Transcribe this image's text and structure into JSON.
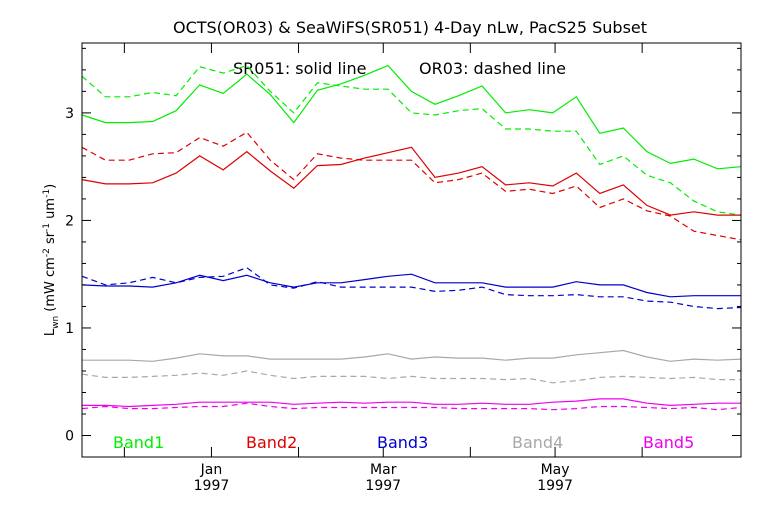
{
  "chart_data": {
    "type": "line",
    "title": "OCTS(OR03) & SeaWiFS(SR051) 4-Day nLw, PacS25 Subset",
    "annotation": {
      "solid": "SR051: solid line",
      "dashed": "OR03: dashed line"
    },
    "ylabel": {
      "main": "L",
      "sub": "wn",
      "units_open": " (mW cm",
      "sup1": "-2",
      "sr": " sr",
      "sup2": "-1",
      "um": " um",
      "sup3": "-1",
      "units_close": ")"
    },
    "xlim": [
      0,
      28
    ],
    "ylim": [
      -0.2,
      3.65
    ],
    "y_ticks": [
      0,
      1,
      2,
      3
    ],
    "y_tick_labels": [
      "0",
      "1",
      "2",
      "3"
    ],
    "x_major_ticks": [
      {
        "x": 5.5,
        "month": "Jan",
        "year": "1997"
      },
      {
        "x": 12.8,
        "month": "Mar",
        "year": "1997"
      },
      {
        "x": 20.1,
        "month": "May",
        "year": "1997"
      }
    ],
    "x_minor_ticks": [
      1.8,
      9.2,
      16.5,
      23.8
    ],
    "grid": false,
    "legend_position": "bottom",
    "series": [
      {
        "name": "Band1",
        "color": "#00ee00",
        "dash": false,
        "x": [
          0,
          1,
          2,
          3,
          4,
          5,
          6,
          7,
          8,
          9,
          10,
          11,
          12,
          13,
          14,
          15,
          16,
          17,
          18,
          19,
          20,
          21,
          22,
          23,
          24,
          25,
          26,
          27,
          28
        ],
        "values": [
          2.98,
          2.91,
          2.91,
          2.92,
          3.02,
          3.26,
          3.18,
          3.36,
          3.17,
          2.91,
          3.21,
          3.27,
          3.35,
          3.44,
          3.2,
          3.08,
          3.16,
          3.25,
          3.0,
          3.03,
          3.0,
          3.15,
          2.81,
          2.86,
          2.64,
          2.53,
          2.57,
          2.48,
          2.5
        ]
      },
      {
        "name": "Band1",
        "color": "#00ee00",
        "dash": true,
        "x": [
          0,
          1,
          2,
          3,
          4,
          5,
          6,
          7,
          8,
          9,
          10,
          11,
          12,
          13,
          14,
          15,
          16,
          17,
          18,
          19,
          20,
          21,
          22,
          23,
          24,
          25,
          26,
          27,
          28
        ],
        "values": [
          3.34,
          3.15,
          3.15,
          3.19,
          3.16,
          3.43,
          3.37,
          3.44,
          3.2,
          3.0,
          3.28,
          3.25,
          3.22,
          3.22,
          3.0,
          2.98,
          3.02,
          3.04,
          2.85,
          2.85,
          2.83,
          2.83,
          2.52,
          2.6,
          2.42,
          2.35,
          2.18,
          2.08,
          2.05
        ]
      },
      {
        "name": "Band2",
        "color": "#dd0000",
        "dash": false,
        "x": [
          0,
          1,
          2,
          3,
          4,
          5,
          6,
          7,
          8,
          9,
          10,
          11,
          12,
          13,
          14,
          15,
          16,
          17,
          18,
          19,
          20,
          21,
          22,
          23,
          24,
          25,
          26,
          27,
          28
        ],
        "values": [
          2.38,
          2.34,
          2.34,
          2.35,
          2.44,
          2.6,
          2.47,
          2.64,
          2.46,
          2.3,
          2.51,
          2.52,
          2.58,
          2.63,
          2.68,
          2.4,
          2.44,
          2.5,
          2.33,
          2.35,
          2.32,
          2.44,
          2.25,
          2.33,
          2.14,
          2.05,
          2.08,
          2.05,
          2.05
        ]
      },
      {
        "name": "Band2",
        "color": "#dd0000",
        "dash": true,
        "x": [
          0,
          1,
          2,
          3,
          4,
          5,
          6,
          7,
          8,
          9,
          10,
          11,
          12,
          13,
          14,
          15,
          16,
          17,
          18,
          19,
          20,
          21,
          22,
          23,
          24,
          25,
          26,
          27,
          28
        ],
        "values": [
          2.68,
          2.56,
          2.56,
          2.62,
          2.63,
          2.77,
          2.69,
          2.82,
          2.56,
          2.38,
          2.62,
          2.58,
          2.56,
          2.56,
          2.56,
          2.35,
          2.38,
          2.44,
          2.27,
          2.29,
          2.25,
          2.32,
          2.12,
          2.2,
          2.09,
          2.04,
          1.9,
          1.86,
          1.82
        ]
      },
      {
        "name": "Band3",
        "color": "#0000cc",
        "dash": false,
        "x": [
          0,
          1,
          2,
          3,
          4,
          5,
          6,
          7,
          8,
          9,
          10,
          11,
          12,
          13,
          14,
          15,
          16,
          17,
          18,
          19,
          20,
          21,
          22,
          23,
          24,
          25,
          26,
          27,
          28
        ],
        "values": [
          1.4,
          1.39,
          1.39,
          1.38,
          1.42,
          1.49,
          1.44,
          1.49,
          1.42,
          1.38,
          1.42,
          1.42,
          1.45,
          1.48,
          1.5,
          1.42,
          1.42,
          1.42,
          1.38,
          1.38,
          1.38,
          1.43,
          1.4,
          1.4,
          1.33,
          1.29,
          1.3,
          1.3,
          1.3
        ]
      },
      {
        "name": "Band3",
        "color": "#0000cc",
        "dash": true,
        "x": [
          0,
          1,
          2,
          3,
          4,
          5,
          6,
          7,
          8,
          9,
          10,
          11,
          12,
          13,
          14,
          15,
          16,
          17,
          18,
          19,
          20,
          21,
          22,
          23,
          24,
          25,
          26,
          27,
          28
        ],
        "values": [
          1.48,
          1.4,
          1.42,
          1.47,
          1.42,
          1.47,
          1.48,
          1.56,
          1.4,
          1.37,
          1.43,
          1.38,
          1.38,
          1.38,
          1.38,
          1.34,
          1.35,
          1.38,
          1.31,
          1.3,
          1.3,
          1.31,
          1.29,
          1.29,
          1.25,
          1.24,
          1.2,
          1.18,
          1.19
        ]
      },
      {
        "name": "Band4",
        "color": "#a8a8a8",
        "dash": false,
        "x": [
          0,
          1,
          2,
          3,
          4,
          5,
          6,
          7,
          8,
          9,
          10,
          11,
          12,
          13,
          14,
          15,
          16,
          17,
          18,
          19,
          20,
          21,
          22,
          23,
          24,
          25,
          26,
          27,
          28
        ],
        "values": [
          0.7,
          0.7,
          0.7,
          0.69,
          0.72,
          0.76,
          0.74,
          0.74,
          0.71,
          0.71,
          0.71,
          0.71,
          0.73,
          0.76,
          0.71,
          0.73,
          0.72,
          0.72,
          0.7,
          0.72,
          0.72,
          0.75,
          0.77,
          0.79,
          0.73,
          0.69,
          0.71,
          0.7,
          0.71
        ]
      },
      {
        "name": "Band4",
        "color": "#a8a8a8",
        "dash": true,
        "x": [
          0,
          1,
          2,
          3,
          4,
          5,
          6,
          7,
          8,
          9,
          10,
          11,
          12,
          13,
          14,
          15,
          16,
          17,
          18,
          19,
          20,
          21,
          22,
          23,
          24,
          25,
          26,
          27,
          28
        ],
        "values": [
          0.57,
          0.54,
          0.54,
          0.55,
          0.56,
          0.58,
          0.56,
          0.6,
          0.56,
          0.53,
          0.55,
          0.55,
          0.55,
          0.53,
          0.55,
          0.53,
          0.53,
          0.53,
          0.52,
          0.53,
          0.49,
          0.51,
          0.54,
          0.55,
          0.54,
          0.53,
          0.54,
          0.52,
          0.52
        ]
      },
      {
        "name": "Band5",
        "color": "#ee00ee",
        "dash": false,
        "x": [
          0,
          1,
          2,
          3,
          4,
          5,
          6,
          7,
          8,
          9,
          10,
          11,
          12,
          13,
          14,
          15,
          16,
          17,
          18,
          19,
          20,
          21,
          22,
          23,
          24,
          25,
          26,
          27,
          28
        ],
        "values": [
          0.28,
          0.28,
          0.27,
          0.28,
          0.29,
          0.31,
          0.31,
          0.31,
          0.31,
          0.29,
          0.3,
          0.31,
          0.3,
          0.31,
          0.31,
          0.29,
          0.29,
          0.3,
          0.29,
          0.29,
          0.31,
          0.32,
          0.34,
          0.34,
          0.3,
          0.28,
          0.29,
          0.3,
          0.3
        ]
      },
      {
        "name": "Band5",
        "color": "#ee00ee",
        "dash": true,
        "x": [
          0,
          1,
          2,
          3,
          4,
          5,
          6,
          7,
          8,
          9,
          10,
          11,
          12,
          13,
          14,
          15,
          16,
          17,
          18,
          19,
          20,
          21,
          22,
          23,
          24,
          25,
          26,
          27,
          28
        ],
        "values": [
          0.25,
          0.27,
          0.25,
          0.25,
          0.26,
          0.27,
          0.27,
          0.3,
          0.27,
          0.25,
          0.26,
          0.26,
          0.26,
          0.26,
          0.26,
          0.26,
          0.25,
          0.25,
          0.25,
          0.25,
          0.24,
          0.25,
          0.27,
          0.27,
          0.26,
          0.25,
          0.26,
          0.24,
          0.26
        ]
      }
    ],
    "legend": [
      {
        "label": "Band1",
        "color": "#00ee00"
      },
      {
        "label": "Band2",
        "color": "#dd0000"
      },
      {
        "label": "Band3",
        "color": "#0000cc"
      },
      {
        "label": "Band4",
        "color": "#a8a8a8"
      },
      {
        "label": "Band5",
        "color": "#ee00ee"
      }
    ]
  }
}
